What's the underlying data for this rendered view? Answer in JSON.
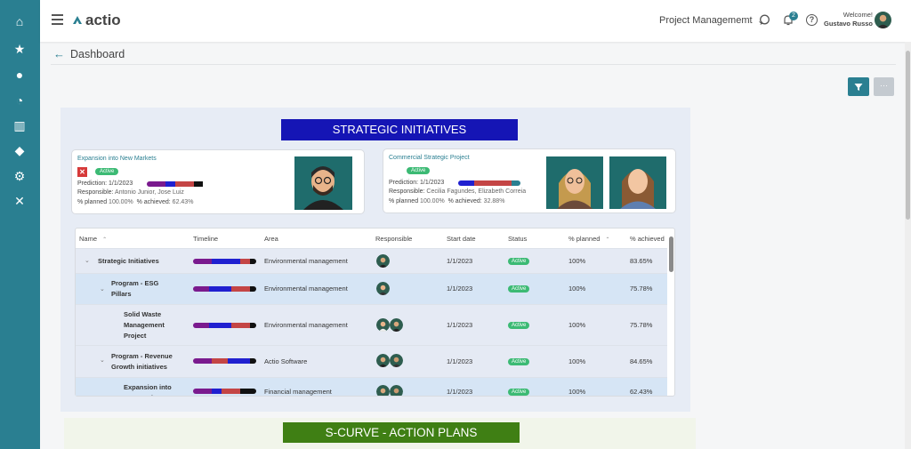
{
  "app": {
    "logo_text": "actio"
  },
  "sidebar": {
    "items": [
      {
        "icon": "home-icon",
        "glyph": "⌂"
      },
      {
        "icon": "star-icon",
        "glyph": "★"
      },
      {
        "icon": "users-icon",
        "glyph": "●"
      },
      {
        "icon": "dashboard-icon",
        "glyph": "◔"
      },
      {
        "icon": "chart-icon",
        "glyph": "▥"
      },
      {
        "icon": "add-user-icon",
        "glyph": "◆"
      },
      {
        "icon": "settings-icon",
        "glyph": "⚙"
      },
      {
        "icon": "tools-icon",
        "glyph": "✕"
      }
    ]
  },
  "topbar": {
    "project": "Project Managememt",
    "notification_count": "2",
    "help_glyph": "?",
    "welcome": "Welcome!",
    "user_name": "Gustavo Russo"
  },
  "page": {
    "title": "Dashboard"
  },
  "toolbar": {
    "more_label": "···"
  },
  "strategic": {
    "banner": "STRATEGIC INITIATIVES",
    "cards": [
      {
        "title": "Expansion into New Markets",
        "status": "Active",
        "prediction_label": "Prediction:",
        "prediction": "1/1/2023",
        "responsible_label": "Responsible:",
        "responsible": "Antonio Junior, Jose Luiz",
        "planned_label": "% planned",
        "planned": "100.00%",
        "achieved_label": "% achieved:",
        "achieved": "62.43%"
      },
      {
        "title": "Commercial Strategic Project",
        "status": "Active",
        "prediction_label": "Prediction:",
        "prediction": "1/1/2023",
        "responsible_label": "Responsible:",
        "responsible": "Cecilia Fagundes, Elizabeth Correia",
        "planned_label": "% planned",
        "planned": "100.00%",
        "achieved_label": "% achieved:",
        "achieved": "32.88%"
      }
    ]
  },
  "table": {
    "columns": [
      "Name",
      "Timeline",
      "Area",
      "Responsible",
      "Start date",
      "Status",
      "% planned",
      "% achieved"
    ],
    "sort_glyph": "⌃",
    "rows": [
      {
        "name": "Strategic Initiatives",
        "area": "Environmental management",
        "start": "1/1/2023",
        "status": "Active",
        "planned": "100%",
        "achieved": "83.65%"
      },
      {
        "name": "Program - ESG Pillars",
        "area": "Environmental management",
        "start": "1/1/2023",
        "status": "Active",
        "planned": "100%",
        "achieved": "75.78%"
      },
      {
        "name": "Solid Waste Management Project",
        "area": "Environmental management",
        "start": "1/1/2023",
        "status": "Active",
        "planned": "100%",
        "achieved": "75.78%"
      },
      {
        "name": "Program - Revenue Growth initiatives",
        "area": "Actio Software",
        "start": "1/1/2023",
        "status": "Active",
        "planned": "100%",
        "achieved": "84.65%"
      },
      {
        "name": "Expansion into New Markets",
        "area": "Financial management",
        "start": "1/1/2023",
        "status": "Active",
        "planned": "100%",
        "achieved": "62.43%"
      }
    ]
  },
  "scurve": {
    "banner": "S-CURVE - ACTION PLANS"
  },
  "colors": {
    "accent": "#2a7f91",
    "banner_blue": "#1515b5",
    "banner_green": "#3f7f14",
    "active": "#3cba74"
  }
}
